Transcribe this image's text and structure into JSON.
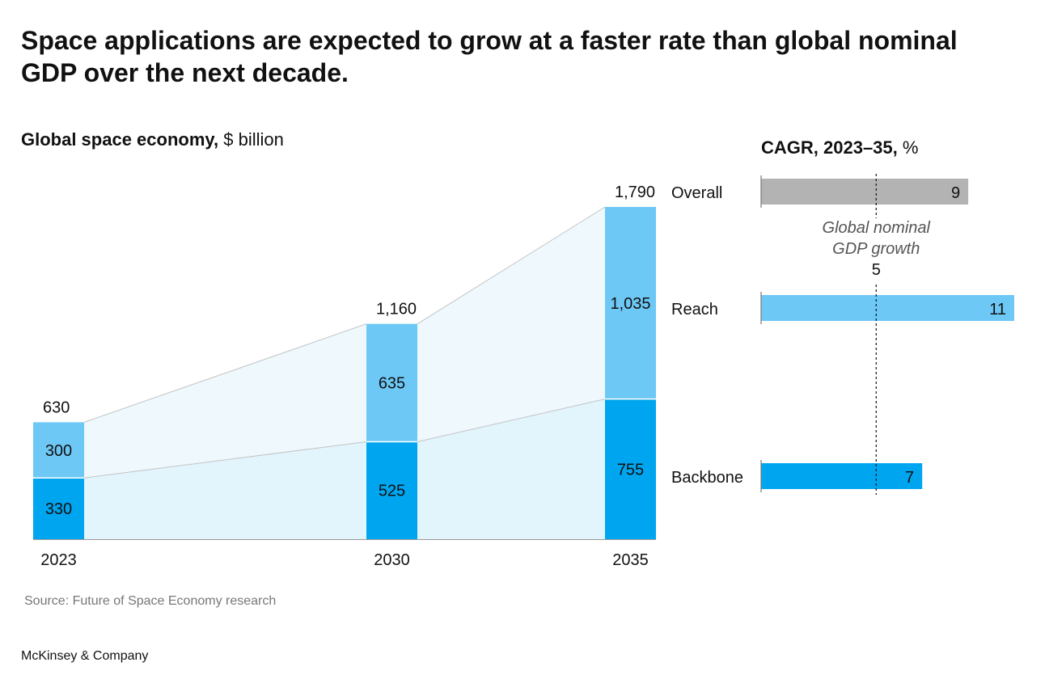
{
  "title": "Space applications are expected to grow at a faster rate than global nominal GDP over the next decade.",
  "source": "Source: Future of Space Economy research",
  "brand": "McKinsey & Company",
  "colors": {
    "reach": "#6dc8f6",
    "backbone": "#00a5ef",
    "overall": "#b3b3b3",
    "reach_area": "#eef8fd",
    "backbone_area": "#e2f4fc"
  },
  "chart_data": [
    {
      "type": "bar",
      "stacked": true,
      "subtitle_bold": "Global space economy,",
      "subtitle_rest": " $ billion",
      "categories": [
        "2023",
        "2030",
        "2035"
      ],
      "series": [
        {
          "key": "backbone",
          "values": [
            330,
            525,
            755
          ]
        },
        {
          "key": "reach",
          "values": [
            300,
            635,
            1035
          ]
        }
      ],
      "totals": [
        "630",
        "1,160",
        "1,790"
      ],
      "segment_labels": {
        "backbone": [
          "330",
          "525",
          "755"
        ],
        "reach": [
          "300",
          "635",
          "1,035"
        ]
      },
      "ylim": [
        0,
        1790
      ]
    },
    {
      "type": "bar",
      "orientation": "horizontal",
      "subtitle_bold": "CAGR, 2023–35,",
      "subtitle_rest": " %",
      "categories": [
        "Overall",
        "Reach",
        "Backbone"
      ],
      "values": [
        9,
        11,
        7
      ],
      "value_labels": [
        "9",
        "11",
        "7"
      ],
      "reference": {
        "label_line1": "Global nominal",
        "label_line2": "GDP growth",
        "value": 5,
        "value_label": "5"
      },
      "xlim": [
        0,
        11
      ]
    }
  ]
}
